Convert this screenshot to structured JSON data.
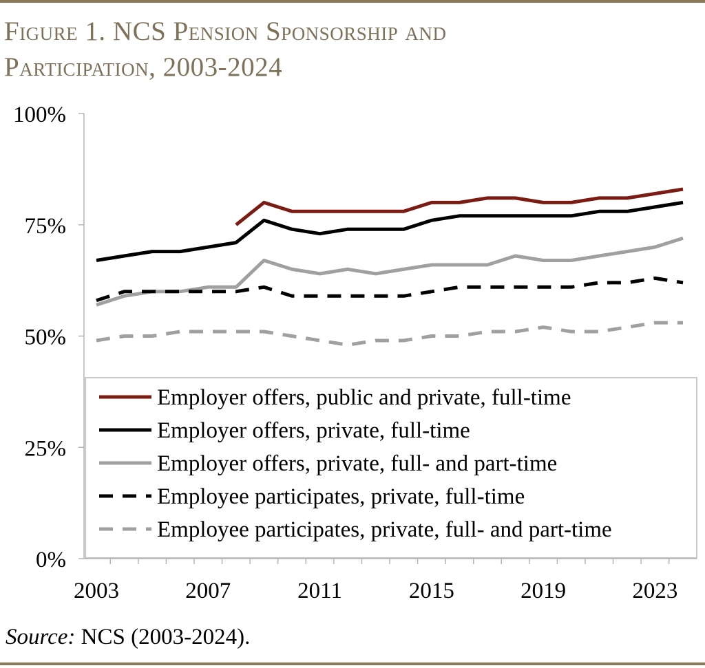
{
  "figure": {
    "title_line1": "Figure 1. NCS Pension Sponsorship and",
    "title_line2": "Participation, 2003-2024",
    "source_label": "Source:",
    "source_text": " NCS (2003-2024)."
  },
  "chart_data": {
    "type": "line",
    "title": "Figure 1. NCS Pension Sponsorship and Participation, 2003-2024",
    "xlabel": "",
    "ylabel": "",
    "xlim": [
      2003,
      2024
    ],
    "ylim": [
      0,
      100
    ],
    "x_ticks": [
      2003,
      2007,
      2011,
      2015,
      2019,
      2023
    ],
    "y_ticks": [
      0,
      25,
      50,
      75,
      100
    ],
    "y_tick_labels": [
      "0%",
      "25%",
      "50%",
      "75%",
      "100%"
    ],
    "x_tick_labels": [
      "2003",
      "2007",
      "2011",
      "2015",
      "2019",
      "2023"
    ],
    "legend_position": "bottom-right",
    "series": [
      {
        "name": "Employer offers, public and private, full-time",
        "color": "#7a1c14",
        "style": "solid",
        "x": [
          2008,
          2009,
          2010,
          2011,
          2012,
          2013,
          2014,
          2015,
          2016,
          2017,
          2018,
          2019,
          2020,
          2021,
          2022,
          2023,
          2024
        ],
        "values": [
          75,
          80,
          78,
          78,
          78,
          78,
          78,
          80,
          80,
          81,
          81,
          80,
          80,
          81,
          81,
          82,
          83
        ]
      },
      {
        "name": "Employer offers, private, full-time",
        "color": "#000000",
        "style": "solid",
        "x": [
          2003,
          2004,
          2005,
          2006,
          2007,
          2008,
          2009,
          2010,
          2011,
          2012,
          2013,
          2014,
          2015,
          2016,
          2017,
          2018,
          2019,
          2020,
          2021,
          2022,
          2023,
          2024
        ],
        "values": [
          67,
          68,
          69,
          69,
          70,
          71,
          76,
          74,
          73,
          74,
          74,
          74,
          76,
          77,
          77,
          77,
          77,
          77,
          78,
          78,
          79,
          80
        ]
      },
      {
        "name": "Employer offers, private, full- and part-time",
        "color": "#a0a0a0",
        "style": "solid",
        "x": [
          2003,
          2004,
          2005,
          2006,
          2007,
          2008,
          2009,
          2010,
          2011,
          2012,
          2013,
          2014,
          2015,
          2016,
          2017,
          2018,
          2019,
          2020,
          2021,
          2022,
          2023,
          2024
        ],
        "values": [
          57,
          59,
          60,
          60,
          61,
          61,
          67,
          65,
          64,
          65,
          64,
          65,
          66,
          66,
          66,
          68,
          67,
          67,
          68,
          69,
          70,
          72
        ]
      },
      {
        "name": "Employee participates, private, full-time",
        "color": "#000000",
        "style": "dashed",
        "x": [
          2003,
          2004,
          2005,
          2006,
          2007,
          2008,
          2009,
          2010,
          2011,
          2012,
          2013,
          2014,
          2015,
          2016,
          2017,
          2018,
          2019,
          2020,
          2021,
          2022,
          2023,
          2024
        ],
        "values": [
          58,
          60,
          60,
          60,
          60,
          60,
          61,
          59,
          59,
          59,
          59,
          59,
          60,
          61,
          61,
          61,
          61,
          61,
          62,
          62,
          63,
          62
        ]
      },
      {
        "name": "Employee participates, private, full- and part-time",
        "color": "#a0a0a0",
        "style": "dashed",
        "x": [
          2003,
          2004,
          2005,
          2006,
          2007,
          2008,
          2009,
          2010,
          2011,
          2012,
          2013,
          2014,
          2015,
          2016,
          2017,
          2018,
          2019,
          2020,
          2021,
          2022,
          2023,
          2024
        ],
        "values": [
          49,
          50,
          50,
          51,
          51,
          51,
          51,
          50,
          49,
          48,
          49,
          49,
          50,
          50,
          51,
          51,
          52,
          51,
          51,
          52,
          53,
          53
        ]
      }
    ]
  }
}
